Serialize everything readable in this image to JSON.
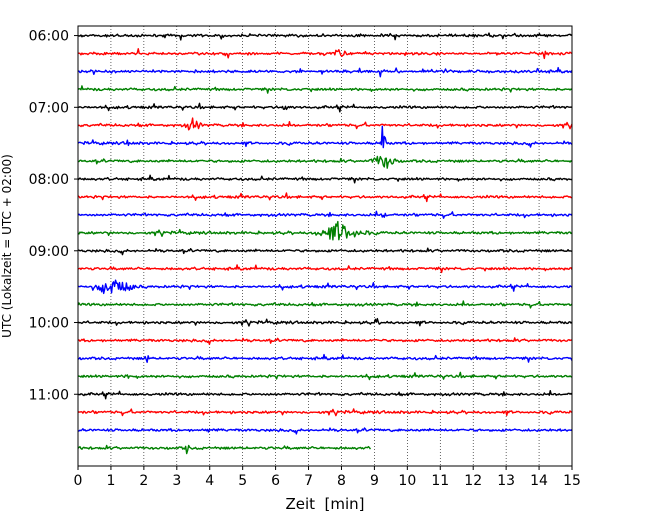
{
  "chart_data": {
    "type": "line",
    "title": "",
    "xlabel": "Zeit  [min]",
    "ylabel": "UTC (Lokalzeit = UTC + 02:00)",
    "xlim": [
      0,
      15
    ],
    "xticks": [
      0,
      1,
      2,
      3,
      4,
      5,
      6,
      7,
      8,
      9,
      10,
      11,
      12,
      13,
      14,
      15
    ],
    "ylim_hours": [
      "05:52",
      "12:00"
    ],
    "yticks": [
      "06:00",
      "07:00",
      "08:00",
      "09:00",
      "10:00",
      "11:00"
    ],
    "grid": {
      "vertical": true,
      "style": "dotted"
    },
    "row_minutes": 15,
    "row_colors": [
      "#000000",
      "#ff0000",
      "#0000ff",
      "#008000"
    ],
    "rows": [
      {
        "start": "06:00",
        "end_min": 15
      },
      {
        "start": "06:15",
        "end_min": 15
      },
      {
        "start": "06:30",
        "end_min": 15
      },
      {
        "start": "06:45",
        "end_min": 15
      },
      {
        "start": "07:00",
        "end_min": 15
      },
      {
        "start": "07:15",
        "end_min": 15
      },
      {
        "start": "07:30",
        "end_min": 15
      },
      {
        "start": "07:45",
        "end_min": 15
      },
      {
        "start": "08:00",
        "end_min": 15
      },
      {
        "start": "08:15",
        "end_min": 15
      },
      {
        "start": "08:30",
        "end_min": 15
      },
      {
        "start": "08:45",
        "end_min": 15
      },
      {
        "start": "09:00",
        "end_min": 15
      },
      {
        "start": "09:15",
        "end_min": 15
      },
      {
        "start": "09:30",
        "end_min": 15
      },
      {
        "start": "09:45",
        "end_min": 15
      },
      {
        "start": "10:00",
        "end_min": 15
      },
      {
        "start": "10:15",
        "end_min": 15
      },
      {
        "start": "10:30",
        "end_min": 15
      },
      {
        "start": "10:45",
        "end_min": 15
      },
      {
        "start": "11:00",
        "end_min": 15
      },
      {
        "start": "11:15",
        "end_min": 15
      },
      {
        "start": "11:30",
        "end_min": 15
      },
      {
        "start": "11:45",
        "end_min": 8.9
      }
    ],
    "events": [
      {
        "row": 0,
        "min": 7.4,
        "amp": 14,
        "dur": 0.15
      },
      {
        "row": 1,
        "min": 7.9,
        "amp": 10,
        "dur": 0.5
      },
      {
        "row": 4,
        "min": 6.3,
        "amp": 8,
        "dur": 0.3
      },
      {
        "row": 5,
        "min": 3.5,
        "amp": 10,
        "dur": 0.6
      },
      {
        "row": 6,
        "min": 1.5,
        "amp": 8,
        "dur": 0.15
      },
      {
        "row": 6,
        "min": 9.25,
        "amp": 85,
        "dur": 0.12
      },
      {
        "row": 7,
        "min": 9.3,
        "amp": 14,
        "dur": 0.8
      },
      {
        "row": 10,
        "min": 9.3,
        "amp": 8,
        "dur": 0.2
      },
      {
        "row": 11,
        "min": 8.0,
        "amp": 18,
        "dur": 1.4
      },
      {
        "row": 14,
        "min": 1.1,
        "amp": 18,
        "dur": 1.2
      },
      {
        "row": 16,
        "min": 9.1,
        "amp": 8,
        "dur": 0.2
      },
      {
        "row": 18,
        "min": 2.1,
        "amp": 9,
        "dur": 0.15
      },
      {
        "row": 19,
        "min": 1.5,
        "amp": 8,
        "dur": 0.15
      },
      {
        "row": 22,
        "min": 4.0,
        "amp": 6,
        "dur": 0.3
      },
      {
        "row": 23,
        "min": 3.3,
        "amp": 10,
        "dur": 0.15
      }
    ]
  }
}
